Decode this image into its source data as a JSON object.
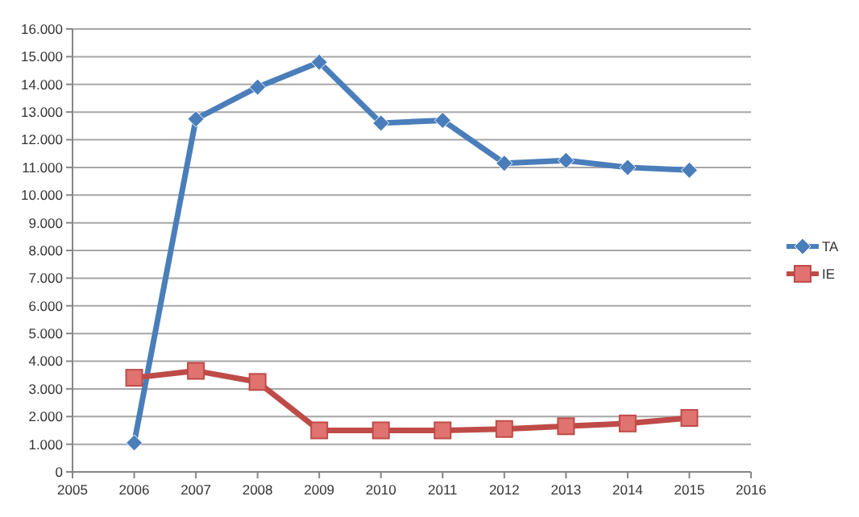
{
  "chart_data": {
    "type": "line",
    "x": [
      2006,
      2007,
      2008,
      2009,
      2010,
      2011,
      2012,
      2013,
      2014,
      2015
    ],
    "series": [
      {
        "name": "TA",
        "color": "#4a7ebb",
        "marker": "diamond",
        "values": [
          1050,
          12750,
          13900,
          14800,
          12600,
          12700,
          11150,
          11250,
          11000,
          10900
        ]
      },
      {
        "name": "IE",
        "color": "#be4b48",
        "marker": "square",
        "values": [
          3400,
          3650,
          3250,
          1500,
          1500,
          1500,
          1550,
          1650,
          1750,
          1950
        ]
      }
    ],
    "xlim": [
      2005,
      2016
    ],
    "xticks": [
      2005,
      2006,
      2007,
      2008,
      2009,
      2010,
      2011,
      2012,
      2013,
      2014,
      2015,
      2016
    ],
    "ylim": [
      0,
      16000
    ],
    "yticks": [
      0,
      {
        "value": 1000,
        "label": "1.000"
      },
      {
        "value": 2000,
        "label": "2.000"
      },
      {
        "value": 3000,
        "label": "3.000"
      },
      {
        "value": 4000,
        "label": "4.000"
      },
      {
        "value": 5000,
        "label": "5.000"
      },
      {
        "value": 6000,
        "label": "6.000"
      },
      {
        "value": 7000,
        "label": "7.000"
      },
      {
        "value": 8000,
        "label": "8.000"
      },
      {
        "value": 9000,
        "label": "9.000"
      },
      {
        "value": 10000,
        "label": "10.000"
      },
      {
        "value": 11000,
        "label": "11.000"
      },
      {
        "value": 12000,
        "label": "12.000"
      },
      {
        "value": 13000,
        "label": "13.000"
      },
      {
        "value": 14000,
        "label": "14.000"
      },
      {
        "value": 15000,
        "label": "15.000"
      },
      {
        "value": 16000,
        "label": "16.000"
      }
    ],
    "grid": "y",
    "legend": "right"
  }
}
